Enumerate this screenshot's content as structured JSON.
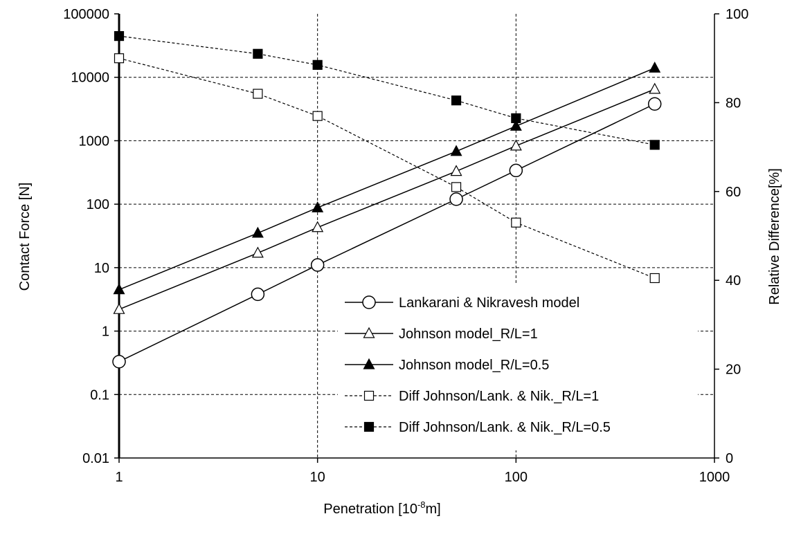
{
  "chart_data": {
    "type": "line",
    "xlabel_prefix": "Penetration [10",
    "xlabel_sup": "-8",
    "xlabel_suffix": "m]",
    "ylabel": "Contact Force [N]",
    "y2label": "Relative Difference[%]",
    "x_scale": "log",
    "y_scale": "log",
    "xlim": [
      1,
      1000
    ],
    "ylim": [
      0.01,
      100000
    ],
    "y2lim": [
      0,
      100
    ],
    "x_ticks": [
      "1",
      "10",
      "100",
      "1000"
    ],
    "y_ticks": [
      "0.01",
      "0.1",
      "1",
      "10",
      "100",
      "1000",
      "10000",
      "100000"
    ],
    "y2_ticks": [
      "0",
      "20",
      "40",
      "60",
      "80",
      "100"
    ],
    "grid": "dashed",
    "legend_position": "lower-right",
    "series": [
      {
        "name": "Lankarani & Nikravesh model",
        "axis": "left",
        "marker": "open-circle",
        "line": "solid",
        "x": [
          1,
          5,
          10,
          50,
          100,
          500
        ],
        "values": [
          0.33,
          3.8,
          11,
          120,
          340,
          3800
        ]
      },
      {
        "name": "Johnson model_R/L=1",
        "axis": "left",
        "marker": "open-triangle",
        "line": "solid",
        "x": [
          1,
          5,
          10,
          50,
          100,
          500
        ],
        "values": [
          2.2,
          17,
          43,
          330,
          830,
          6500
        ]
      },
      {
        "name": "Johnson model_R/L=0.5",
        "axis": "left",
        "marker": "filled-triangle",
        "line": "solid",
        "x": [
          1,
          5,
          10,
          50,
          100,
          500
        ],
        "values": [
          4.5,
          35,
          88,
          680,
          1700,
          14000
        ]
      },
      {
        "name": "Diff Johnson/Lank. & Nik._R/L=1",
        "axis": "right",
        "marker": "open-square",
        "line": "dashed",
        "x": [
          1,
          5,
          10,
          50,
          100,
          500
        ],
        "values": [
          90,
          82,
          77,
          61,
          53,
          40.5
        ]
      },
      {
        "name": "Diff Johnson/Lank. & Nik._R/L=0.5",
        "axis": "right",
        "marker": "filled-square",
        "line": "dashed",
        "x": [
          1,
          5,
          10,
          50,
          100,
          500
        ],
        "values": [
          95,
          91,
          88.5,
          80.5,
          76.5,
          70.5
        ]
      }
    ]
  }
}
